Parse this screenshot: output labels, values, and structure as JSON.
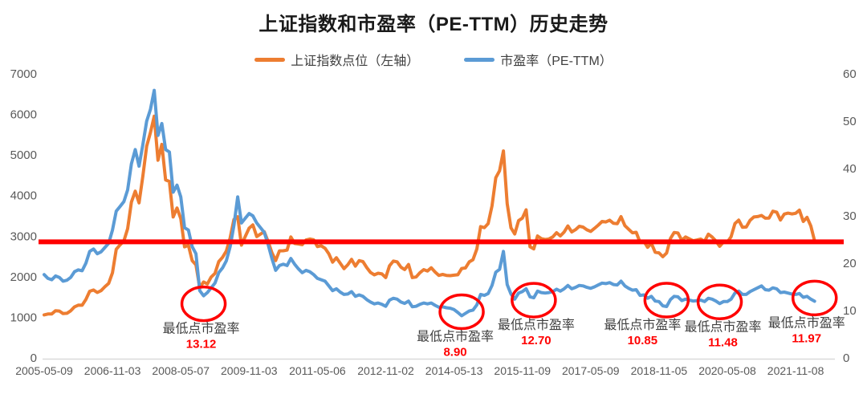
{
  "title": "上证指数和市盈率（PE-TTM）历史走势",
  "legend": [
    {
      "label": "上证指数点位（左轴）",
      "color": "#ED7D31"
    },
    {
      "label": "市盈率（PE-TTM）",
      "color": "#5B9BD5"
    }
  ],
  "colors": {
    "index_series": "#ED7D31",
    "pe_series": "#5B9BD5",
    "reference_line": "#FF0000",
    "annotation_circle": "#FF0000",
    "annotation_value": "#FF0000",
    "annotation_text": "#404040",
    "axis_text": "#595959",
    "axis_line": "#D9D9D9"
  },
  "chart_data": {
    "type": "line",
    "title": "上证指数和市盈率（PE-TTM）历史走势",
    "grid": false,
    "legend_position": "top",
    "x_start": "2005-05",
    "x_end": "2022-04",
    "frequency": "monthly",
    "x_tick_labels": [
      "2005-05-09",
      "2006-11-03",
      "2008-05-07",
      "2009-11-03",
      "2011-05-06",
      "2012-11-02",
      "2014-05-13",
      "2015-11-09",
      "2017-05-09",
      "2018-11-05",
      "2020-05-08",
      "2021-11-08"
    ],
    "left_axis": {
      "min": 0,
      "max": 7000,
      "step": 1000,
      "ticks": [
        0,
        1000,
        2000,
        3000,
        4000,
        5000,
        6000,
        7000
      ]
    },
    "right_axis": {
      "min": 0,
      "max": 60,
      "step": 10,
      "ticks": [
        0,
        10,
        20,
        30,
        40,
        50,
        60
      ]
    },
    "reference_line": {
      "axis": "left",
      "value": 2860,
      "color": "#FF0000"
    },
    "series": [
      {
        "name": "上证指数点位（左轴）",
        "axis": "left",
        "color": "#ED7D31",
        "values": [
          1060,
          1081,
          1083,
          1163,
          1155,
          1092,
          1099,
          1161,
          1258,
          1299,
          1298,
          1440,
          1641,
          1672,
          1612,
          1658,
          1752,
          1837,
          2099,
          2675,
          2786,
          2881,
          3183,
          3841,
          4109,
          3820,
          4471,
          5218,
          5552,
          5955,
          4871,
          5262,
          4383,
          4348,
          3472,
          3693,
          3433,
          2736,
          2775,
          2397,
          2294,
          1729,
          1871,
          1821,
          1991,
          2082,
          2373,
          2477,
          2632,
          2959,
          3412,
          3478,
          2779,
          2995,
          3195,
          3277,
          2989,
          3052,
          3109,
          2871,
          2592,
          2398,
          2638,
          2639,
          2656,
          2979,
          2820,
          2808,
          2790,
          2905,
          2928,
          2911,
          2743,
          2762,
          2701,
          2567,
          2359,
          2468,
          2333,
          2199,
          2293,
          2428,
          2263,
          2396,
          2372,
          2225,
          2104,
          2047,
          2086,
          2068,
          1980,
          2269,
          2385,
          2366,
          2237,
          2177,
          2301,
          1979,
          1994,
          2098,
          2175,
          2141,
          2221,
          2116,
          2033,
          2056,
          2033,
          2026,
          2039,
          2048,
          2202,
          2217,
          2364,
          2420,
          2683,
          3235,
          3210,
          3310,
          3748,
          4442,
          4612,
          5100,
          3800,
          3206,
          3053,
          3383,
          3445,
          3650,
          2738,
          2688,
          3004,
          2938,
          2917,
          2930,
          2979,
          3085,
          3005,
          3100,
          3250,
          3104,
          3159,
          3242,
          3223,
          3155,
          3117,
          3192,
          3273,
          3361,
          3349,
          3393,
          3317,
          3307,
          3481,
          3259,
          3169,
          3082,
          3095,
          2847,
          2876,
          2725,
          2821,
          2603,
          2588,
          2494,
          2585,
          2941,
          3091,
          3078,
          2899,
          2979,
          2933,
          2886,
          2905,
          2929,
          2872,
          3050,
          2977,
          2880,
          2750,
          2860,
          2852,
          2985,
          3310,
          3396,
          3218,
          3225,
          3392,
          3473,
          3483,
          3509,
          3442,
          3447,
          3615,
          3591,
          3397,
          3544,
          3568,
          3547,
          3564,
          3640,
          3361,
          3462,
          3252,
          2886
        ]
      },
      {
        "name": "市盈率（PE-TTM）",
        "axis": "right",
        "color": "#5B9BD5",
        "values": [
          17.6,
          16.8,
          16.5,
          17.3,
          17.0,
          16.2,
          16.4,
          17.0,
          18.2,
          18.6,
          18.4,
          20.0,
          22.5,
          23.0,
          22.0,
          22.4,
          23.3,
          24.2,
          27.0,
          31.0,
          32.0,
          33.0,
          35.5,
          41.0,
          44.0,
          40.5,
          45.0,
          50.0,
          52.5,
          56.5,
          47.0,
          49.5,
          44.0,
          43.5,
          35.0,
          36.5,
          34.0,
          27.5,
          27.0,
          23.5,
          22.0,
          14.2,
          13.12,
          13.8,
          14.8,
          15.8,
          18.0,
          19.0,
          20.5,
          23.5,
          28.0,
          34.0,
          28.5,
          29.5,
          30.5,
          30.0,
          28.5,
          27.5,
          26.5,
          24.0,
          21.0,
          18.5,
          19.5,
          19.8,
          19.5,
          21.0,
          19.8,
          18.8,
          18.0,
          18.5,
          18.2,
          17.6,
          16.8,
          16.5,
          16.2,
          15.2,
          14.2,
          14.6,
          13.9,
          13.4,
          13.5,
          14.0,
          13.0,
          13.3,
          13.0,
          12.3,
          11.8,
          11.4,
          11.6,
          11.3,
          10.9,
          12.2,
          12.6,
          12.4,
          11.8,
          11.5,
          12.0,
          10.8,
          10.9,
          11.3,
          11.6,
          11.4,
          11.6,
          11.1,
          10.7,
          10.8,
          10.6,
          10.5,
          10.2,
          9.6,
          8.9,
          9.4,
          9.9,
          10.1,
          11.2,
          13.4,
          13.2,
          13.6,
          15.3,
          18.1,
          18.7,
          22.5,
          15.5,
          13.5,
          12.4,
          13.7,
          14.0,
          14.6,
          12.9,
          12.7,
          14.1,
          13.8,
          13.7,
          13.8,
          14.0,
          14.5,
          14.1,
          14.6,
          15.3,
          14.6,
          14.9,
          15.3,
          15.2,
          14.9,
          14.7,
          15.0,
          15.4,
          15.8,
          15.7,
          15.9,
          15.5,
          15.4,
          16.2,
          15.2,
          14.7,
          14.3,
          14.4,
          13.2,
          13.3,
          12.6,
          13.0,
          12.0,
          11.9,
          11.0,
          10.85,
          12.3,
          13.0,
          12.9,
          12.1,
          12.4,
          12.2,
          12.0,
          12.1,
          12.2,
          11.9,
          12.6,
          12.4,
          12.0,
          11.48,
          11.9,
          11.9,
          12.4,
          13.7,
          14.1,
          13.4,
          13.4,
          14.0,
          14.4,
          14.8,
          15.2,
          14.4,
          14.3,
          14.8,
          14.6,
          13.8,
          13.9,
          13.7,
          13.5,
          13.4,
          13.6,
          12.8,
          13.0,
          12.4,
          11.97
        ]
      }
    ],
    "annotations": [
      {
        "month": "2008-11",
        "pe": 13.12,
        "text": "最低点市盈率",
        "value_label": "13.12",
        "circle_dy": 10,
        "text_dx": -3
      },
      {
        "month": "2014-07",
        "pe": 8.9,
        "text": "最低点市盈率",
        "value_label": "8.90",
        "circle_dy": -5,
        "text_dx": -8
      },
      {
        "month": "2016-02",
        "pe": 12.7,
        "text": "最低点市盈率",
        "value_label": "12.70",
        "circle_dy": 3,
        "text_dx": 3
      },
      {
        "month": "2019-01",
        "pe": 10.85,
        "text": "最低点市盈率",
        "value_label": "10.85",
        "circle_dy": -8,
        "text_dx": -30
      },
      {
        "month": "2020-03",
        "pe": 11.48,
        "text": "最低点市盈率",
        "value_label": "11.48",
        "circle_dy": -2,
        "text_dx": 4
      },
      {
        "month": "2022-04",
        "pe": 11.97,
        "text": "最低点市盈率",
        "value_label": "11.97",
        "circle_dy": -4,
        "text_dx": -10
      }
    ]
  }
}
